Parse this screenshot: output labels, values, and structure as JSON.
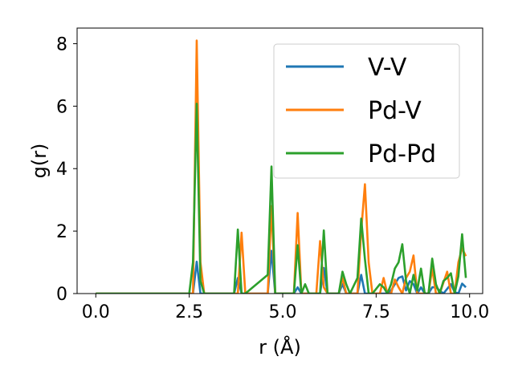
{
  "chart_data": {
    "type": "line",
    "xlabel": "r (Å)",
    "ylabel": "g(r)",
    "xlim": [
      -0.5,
      10.35
    ],
    "ylim": [
      0,
      8.5
    ],
    "xticks": [
      0.0,
      2.5,
      5.0,
      7.5,
      10.0
    ],
    "xtick_labels": [
      "0.0",
      "2.5",
      "5.0",
      "7.5",
      "10.0"
    ],
    "yticks": [
      0,
      2,
      4,
      6,
      8
    ],
    "ytick_labels": [
      "0",
      "2",
      "4",
      "6",
      "8"
    ],
    "grid": false,
    "legend_position": "top-right",
    "series": [
      {
        "name": "V-V",
        "color": "#1f77b4",
        "x": [
          0.0,
          2.5,
          2.6,
          2.7,
          2.8,
          2.9,
          3.7,
          3.8,
          3.9,
          4.0,
          4.6,
          4.7,
          4.8,
          5.3,
          5.4,
          5.5,
          6.0,
          6.1,
          6.2,
          6.5,
          6.6,
          6.7,
          7.0,
          7.1,
          7.2,
          7.3,
          7.5,
          7.8,
          7.9,
          8.0,
          8.1,
          8.2,
          8.3,
          8.4,
          8.5,
          8.6,
          8.7,
          8.8,
          8.9,
          9.0,
          9.1,
          9.2,
          9.3,
          9.4,
          9.5,
          9.6,
          9.7,
          9.8,
          9.9
        ],
        "y": [
          0.0,
          0.0,
          0.0,
          1.02,
          0.0,
          0.0,
          0.0,
          0.5,
          0.0,
          0.0,
          0.0,
          1.37,
          0.0,
          0.0,
          0.2,
          0.0,
          0.0,
          0.82,
          0.0,
          0.0,
          0.3,
          0.0,
          0.0,
          0.6,
          0.0,
          0.0,
          0.0,
          0.0,
          0.1,
          0.3,
          0.5,
          0.55,
          0.1,
          0.4,
          0.3,
          0.0,
          0.2,
          0.0,
          0.0,
          0.2,
          0.2,
          0.1,
          0.0,
          0.15,
          0.3,
          0.05,
          0.0,
          0.32,
          0.2
        ]
      },
      {
        "name": "Pd-V",
        "color": "#ff7f0e",
        "x": [
          0.0,
          2.5,
          2.6,
          2.7,
          2.8,
          2.9,
          3.8,
          3.9,
          4.0,
          4.6,
          4.7,
          4.8,
          5.3,
          5.4,
          5.5,
          5.9,
          6.0,
          6.1,
          6.2,
          6.5,
          6.6,
          6.7,
          7.0,
          7.1,
          7.2,
          7.3,
          7.4,
          7.6,
          7.7,
          7.8,
          7.9,
          8.0,
          8.1,
          8.2,
          8.3,
          8.4,
          8.5,
          8.6,
          8.7,
          8.8,
          8.9,
          9.0,
          9.1,
          9.2,
          9.3,
          9.4,
          9.5,
          9.6,
          9.7,
          9.8,
          9.9
        ],
        "y": [
          0.0,
          0.0,
          0.0,
          8.1,
          1.0,
          0.0,
          0.0,
          1.95,
          0.0,
          0.0,
          2.8,
          0.0,
          0.0,
          2.58,
          0.0,
          0.0,
          1.68,
          0.2,
          0.0,
          0.0,
          0.5,
          0.0,
          0.0,
          2.0,
          3.5,
          1.0,
          0.0,
          0.0,
          0.5,
          0.0,
          0.0,
          0.45,
          0.2,
          0.0,
          0.5,
          0.7,
          1.22,
          0.0,
          0.0,
          0.0,
          0.0,
          0.8,
          0.0,
          0.0,
          0.35,
          0.7,
          0.0,
          0.0,
          1.0,
          1.45,
          1.2
        ]
      },
      {
        "name": "Pd-Pd",
        "color": "#2ca02c",
        "x": [
          0.0,
          2.5,
          2.6,
          2.7,
          2.8,
          2.9,
          3.7,
          3.8,
          3.9,
          4.0,
          4.6,
          4.7,
          4.8,
          5.3,
          5.4,
          5.5,
          5.6,
          5.7,
          6.0,
          6.1,
          6.2,
          6.5,
          6.6,
          6.7,
          6.8,
          7.0,
          7.1,
          7.2,
          7.3,
          7.4,
          7.6,
          7.7,
          7.8,
          7.9,
          8.0,
          8.1,
          8.2,
          8.3,
          8.4,
          8.5,
          8.6,
          8.7,
          8.8,
          8.9,
          9.0,
          9.1,
          9.2,
          9.3,
          9.4,
          9.5,
          9.6,
          9.7,
          9.8,
          9.9
        ],
        "y": [
          0.0,
          0.0,
          1.0,
          6.08,
          0.4,
          0.0,
          0.0,
          2.05,
          0.0,
          0.0,
          0.6,
          4.07,
          0.0,
          0.0,
          1.55,
          0.0,
          0.3,
          0.0,
          0.0,
          2.02,
          0.0,
          0.0,
          0.7,
          0.3,
          0.0,
          0.5,
          2.4,
          1.1,
          0.0,
          0.0,
          0.3,
          0.2,
          0.0,
          0.3,
          0.8,
          1.0,
          1.58,
          0.4,
          0.0,
          0.6,
          0.1,
          0.8,
          0.0,
          0.0,
          1.12,
          0.3,
          0.0,
          0.4,
          0.5,
          0.65,
          0.0,
          0.55,
          1.9,
          0.5
        ]
      }
    ]
  }
}
